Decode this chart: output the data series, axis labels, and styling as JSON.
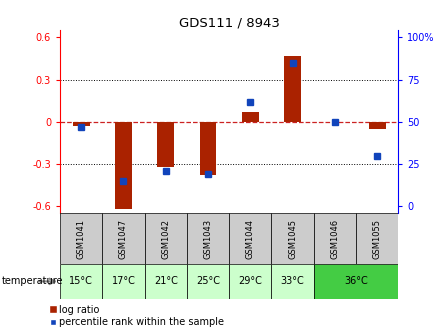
{
  "title": "GDS111 / 8943",
  "samples": [
    "GSM1041",
    "GSM1047",
    "GSM1042",
    "GSM1043",
    "GSM1044",
    "GSM1045",
    "GSM1046",
    "GSM1055"
  ],
  "log_ratios": [
    -0.03,
    -0.62,
    -0.32,
    -0.38,
    0.07,
    0.47,
    0.0,
    -0.05
  ],
  "percentile_ranks": [
    47,
    15,
    21,
    19,
    62,
    85,
    50,
    30
  ],
  "temperatures_unique": [
    "15°C",
    "17°C",
    "21°C",
    "25°C",
    "29°C",
    "33°C",
    "36°C"
  ],
  "temp_col_spans": [
    1,
    1,
    1,
    1,
    1,
    1,
    2
  ],
  "temp_group_colors": [
    "#ccffcc",
    "#ccffcc",
    "#ccffcc",
    "#ccffcc",
    "#ccffcc",
    "#ccffcc",
    "#44cc44"
  ],
  "ylim_left": [
    -0.65,
    0.65
  ],
  "ylim_right": [
    -10.833,
    108.333
  ],
  "yticks_left": [
    -0.6,
    -0.3,
    0.0,
    0.3,
    0.6
  ],
  "yticks_right": [
    0,
    25,
    50,
    75,
    100
  ],
  "ytick_labels_right": [
    "0",
    "25",
    "50",
    "75",
    "100%"
  ],
  "bar_color": "#aa2200",
  "marker_color": "#1144bb",
  "hline_color": "#cc2222",
  "bg_color_gray": "#cccccc",
  "temp_label": "temperature",
  "legend_log": "log ratio",
  "legend_pct": "percentile rank within the sample"
}
